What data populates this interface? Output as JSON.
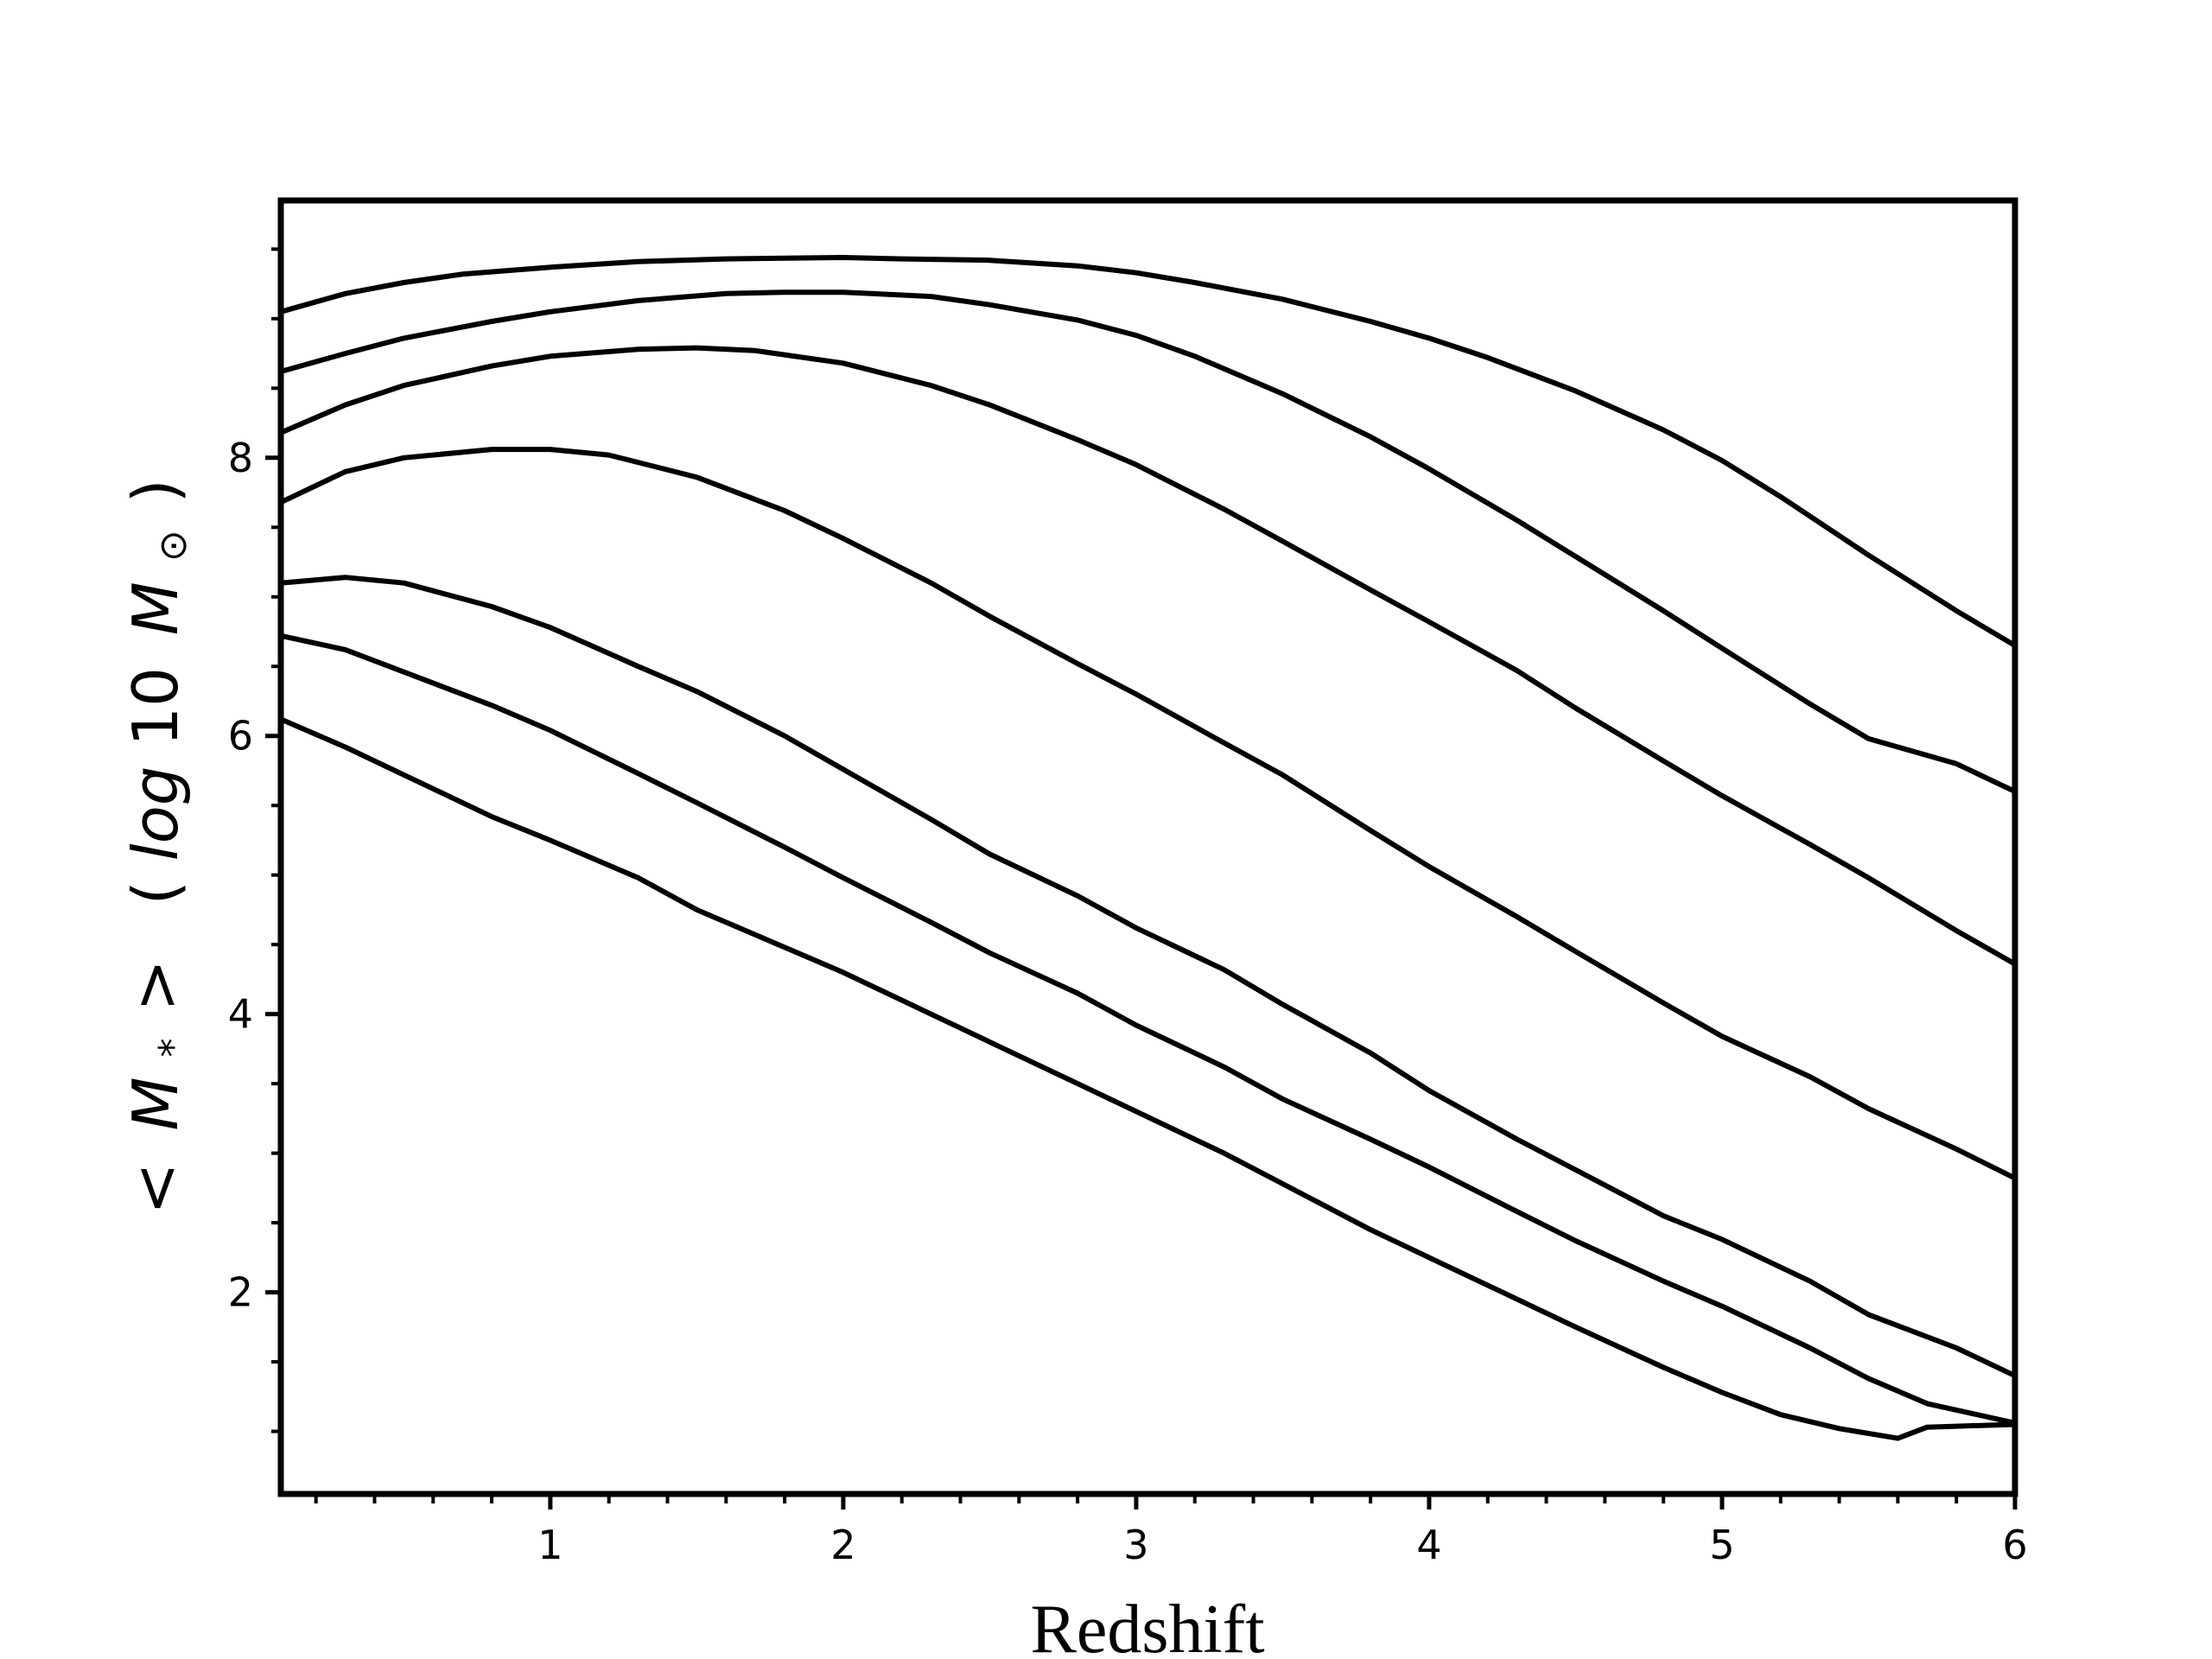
{
  "chart_data": {
    "type": "line",
    "title": "",
    "xlabel": "Redshift",
    "ylabel": "< M_* > (log10 M_⊙)",
    "ylabel_parts": {
      "open": "<",
      "symbol": "M",
      "sub": "*",
      "close": ">",
      "paren_open": "(",
      "log": "log",
      "ten": "10",
      "unit_symbol": "M",
      "unit_sub": "⊙",
      "paren_close": ")"
    },
    "xlim": [
      0.08,
      6.0
    ],
    "ylim": [
      0.55,
      9.85
    ],
    "xticks": [
      1,
      2,
      3,
      4,
      5,
      6
    ],
    "xtick_labels": [
      "1",
      "2",
      "3",
      "4",
      "5",
      "6"
    ],
    "yticks": [
      2,
      4,
      6,
      8
    ],
    "ytick_labels": [
      "2",
      "4",
      "6",
      "8"
    ],
    "x_minor_step": 0.2,
    "y_minor_step": 0.5,
    "grid": false,
    "legend": "none",
    "line_color": "#000000",
    "series": [
      {
        "x": [
          0.08,
          0.3,
          0.5,
          0.7,
          1.0,
          1.3,
          1.6,
          2.0,
          2.2,
          2.5,
          2.8,
          3.0,
          3.2,
          3.5,
          3.8,
          4.0,
          4.2,
          4.5,
          4.8,
          5.0,
          5.2,
          5.5,
          5.8,
          6.0
        ],
        "y": [
          9.05,
          9.18,
          9.26,
          9.32,
          9.37,
          9.41,
          9.43,
          9.44,
          9.43,
          9.42,
          9.38,
          9.33,
          9.26,
          9.14,
          8.98,
          8.86,
          8.72,
          8.48,
          8.2,
          7.98,
          7.72,
          7.3,
          6.9,
          6.65
        ]
      },
      {
        "x": [
          0.08,
          0.3,
          0.5,
          0.8,
          1.0,
          1.3,
          1.6,
          1.8,
          2.0,
          2.3,
          2.5,
          2.8,
          3.0,
          3.2,
          3.5,
          3.8,
          4.0,
          4.3,
          4.5,
          4.8,
          5.0,
          5.3,
          5.5,
          5.8,
          6.0
        ],
        "y": [
          8.62,
          8.75,
          8.86,
          8.98,
          9.05,
          9.13,
          9.18,
          9.19,
          9.19,
          9.16,
          9.1,
          8.99,
          8.88,
          8.73,
          8.46,
          8.15,
          7.92,
          7.55,
          7.29,
          6.9,
          6.63,
          6.23,
          5.98,
          5.8,
          5.6
        ]
      },
      {
        "x": [
          0.08,
          0.3,
          0.5,
          0.8,
          1.0,
          1.3,
          1.5,
          1.7,
          2.0,
          2.3,
          2.5,
          2.8,
          3.0,
          3.3,
          3.5,
          3.8,
          4.0,
          4.3,
          4.5,
          4.8,
          5.0,
          5.3,
          5.5,
          5.8,
          6.0
        ],
        "y": [
          8.18,
          8.38,
          8.52,
          8.66,
          8.73,
          8.78,
          8.79,
          8.77,
          8.68,
          8.52,
          8.38,
          8.13,
          7.95,
          7.63,
          7.4,
          7.05,
          6.82,
          6.47,
          6.2,
          5.82,
          5.57,
          5.22,
          4.98,
          4.6,
          4.36
        ]
      },
      {
        "x": [
          0.08,
          0.3,
          0.5,
          0.8,
          1.0,
          1.2,
          1.5,
          1.8,
          2.0,
          2.3,
          2.5,
          2.8,
          3.0,
          3.3,
          3.5,
          3.8,
          4.0,
          4.3,
          4.5,
          4.8,
          5.0,
          5.3,
          5.5,
          5.8,
          6.0
        ],
        "y": [
          7.68,
          7.9,
          8.0,
          8.06,
          8.06,
          8.02,
          7.86,
          7.62,
          7.42,
          7.1,
          6.86,
          6.52,
          6.3,
          5.95,
          5.72,
          5.32,
          5.06,
          4.7,
          4.45,
          4.08,
          3.84,
          3.55,
          3.32,
          3.03,
          2.82
        ]
      },
      {
        "x": [
          0.08,
          0.3,
          0.5,
          0.8,
          1.0,
          1.3,
          1.5,
          1.8,
          2.0,
          2.3,
          2.5,
          2.8,
          3.0,
          3.3,
          3.5,
          3.8,
          4.0,
          4.3,
          4.5,
          4.8,
          5.0,
          5.3,
          5.5,
          5.8,
          6.0
        ],
        "y": [
          7.1,
          7.14,
          7.1,
          6.93,
          6.78,
          6.5,
          6.32,
          6.0,
          5.76,
          5.4,
          5.15,
          4.85,
          4.62,
          4.32,
          4.07,
          3.72,
          3.45,
          3.1,
          2.88,
          2.55,
          2.38,
          2.08,
          1.84,
          1.6,
          1.4
        ]
      },
      {
        "x": [
          0.08,
          0.3,
          0.5,
          0.8,
          1.0,
          1.3,
          1.5,
          1.8,
          2.0,
          2.3,
          2.5,
          2.8,
          3.0,
          3.3,
          3.5,
          3.8,
          4.0,
          4.3,
          4.5,
          4.8,
          5.0,
          5.3,
          5.5,
          5.7,
          6.0
        ],
        "y": [
          6.72,
          6.62,
          6.46,
          6.22,
          6.04,
          5.73,
          5.52,
          5.2,
          4.98,
          4.66,
          4.44,
          4.15,
          3.92,
          3.62,
          3.39,
          3.1,
          2.9,
          2.58,
          2.37,
          2.08,
          1.9,
          1.6,
          1.38,
          1.2,
          1.06
        ]
      },
      {
        "x": [
          0.08,
          0.3,
          0.5,
          0.8,
          1.0,
          1.3,
          1.5,
          1.8,
          2.0,
          2.3,
          2.5,
          2.8,
          3.0,
          3.3,
          3.5,
          3.8,
          4.0,
          4.3,
          4.5,
          4.8,
          5.0,
          5.2,
          5.4,
          5.6,
          5.7,
          6.0
        ],
        "y": [
          6.12,
          5.92,
          5.72,
          5.42,
          5.25,
          4.98,
          4.75,
          4.48,
          4.3,
          4.0,
          3.8,
          3.5,
          3.3,
          3.0,
          2.78,
          2.45,
          2.25,
          1.95,
          1.75,
          1.46,
          1.28,
          1.12,
          1.02,
          0.95,
          1.03,
          1.05
        ]
      }
    ]
  }
}
